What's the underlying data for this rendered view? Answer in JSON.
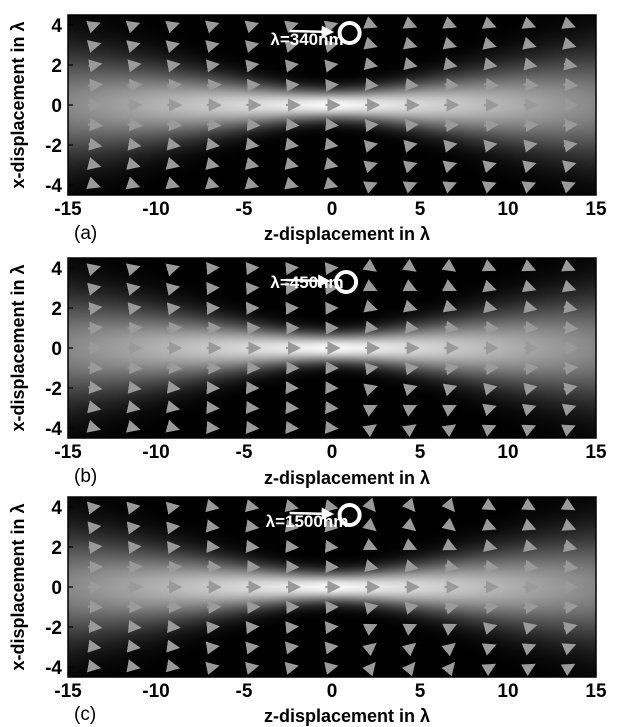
{
  "chart_data": [
    {
      "type": "heatmap",
      "panel": "(a)",
      "annotation": "λ=340nm",
      "xlabel": "z-displacement in λ",
      "ylabel": "x-displacement in λ",
      "xlim": [
        -15,
        15
      ],
      "ylim": [
        4.5,
        -4.5
      ],
      "xticks": [
        -15,
        -10,
        -5,
        0,
        5,
        10,
        15
      ],
      "yticks": [
        -4,
        -2,
        0,
        2,
        4
      ],
      "beam_waist": 0.9,
      "beam_divergence": 0.22,
      "particle_position": [
        1,
        3.6
      ],
      "arrow_curvature": 0.05,
      "colormap": "gray"
    },
    {
      "type": "heatmap",
      "panel": "(b)",
      "annotation": "λ=450nm",
      "xlabel": "z-displacement in λ",
      "ylabel": "x-displacement in λ",
      "xlim": [
        -15,
        15
      ],
      "ylim": [
        4.5,
        -4.5
      ],
      "xticks": [
        -15,
        -10,
        -5,
        0,
        5,
        10,
        15
      ],
      "yticks": [
        -4,
        -2,
        0,
        2,
        4
      ],
      "beam_waist": 0.9,
      "beam_divergence": 0.22,
      "particle_position": [
        0.8,
        3.3
      ],
      "arrow_curvature": 0.25,
      "colormap": "gray"
    },
    {
      "type": "heatmap",
      "panel": "(c)",
      "annotation": "λ=1500nm",
      "xlabel": "z-displacement in λ",
      "ylabel": "x-displacement in λ",
      "xlim": [
        -15,
        15
      ],
      "ylim": [
        4.5,
        -4.5
      ],
      "xticks": [
        -15,
        -10,
        -5,
        0,
        5,
        10,
        15
      ],
      "yticks": [
        -4,
        -2,
        0,
        2,
        4
      ],
      "beam_waist": 0.9,
      "beam_divergence": 0.22,
      "particle_position": [
        1,
        3.6
      ],
      "arrow_curvature": 0.55,
      "colormap": "gray"
    }
  ]
}
